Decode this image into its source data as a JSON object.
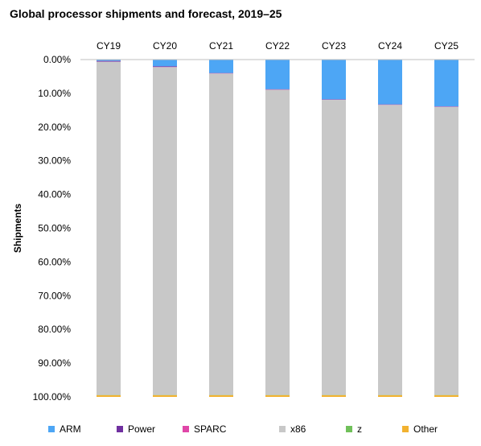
{
  "chart_data": {
    "type": "bar",
    "stacked": true,
    "title": "Global processor shipments and forecast, 2019–25",
    "xlabel": "",
    "ylabel": "Shipments",
    "y_reversed": true,
    "ylim": [
      0,
      1
    ],
    "yticks": [
      0,
      0.1,
      0.2,
      0.3,
      0.4,
      0.5,
      0.6,
      0.7,
      0.8,
      0.9,
      1.0
    ],
    "ytick_labels": [
      "0.00%",
      "10.00%",
      "20.00%",
      "30.00%",
      "40.00%",
      "50.00%",
      "60.00%",
      "70.00%",
      "80.00%",
      "90.00%",
      "100.00%"
    ],
    "categories": [
      "CY19",
      "CY20",
      "CY21",
      "CY22",
      "CY23",
      "CY24",
      "CY25"
    ],
    "x_axis_position": "top",
    "grid": false,
    "legend": "bottom",
    "series": [
      {
        "name": "ARM",
        "color": "#4da6f5",
        "values": [
          0.004,
          0.02,
          0.04,
          0.088,
          0.118,
          0.133,
          0.139
        ]
      },
      {
        "name": "Power",
        "color": "#7030a0",
        "values": [
          0.002,
          0.002,
          0.001,
          0.001,
          0.001,
          0.001,
          0.001
        ]
      },
      {
        "name": "SPARC",
        "color": "#e046a8",
        "values": [
          0.0005,
          0.0005,
          0.0005,
          0.0005,
          0.0005,
          0.0005,
          0.0005
        ]
      },
      {
        "name": "x86",
        "color": "#c8c8c8",
        "values": [
          0.988,
          0.972,
          0.953,
          0.905,
          0.875,
          0.86,
          0.854
        ]
      },
      {
        "name": "z",
        "color": "#70c05a",
        "values": [
          0.0005,
          0.0005,
          0.0005,
          0.0005,
          0.0005,
          0.0005,
          0.0005
        ]
      },
      {
        "name": "Other",
        "color": "#f2b230",
        "values": [
          0.005,
          0.005,
          0.005,
          0.005,
          0.005,
          0.005,
          0.005
        ]
      }
    ]
  }
}
